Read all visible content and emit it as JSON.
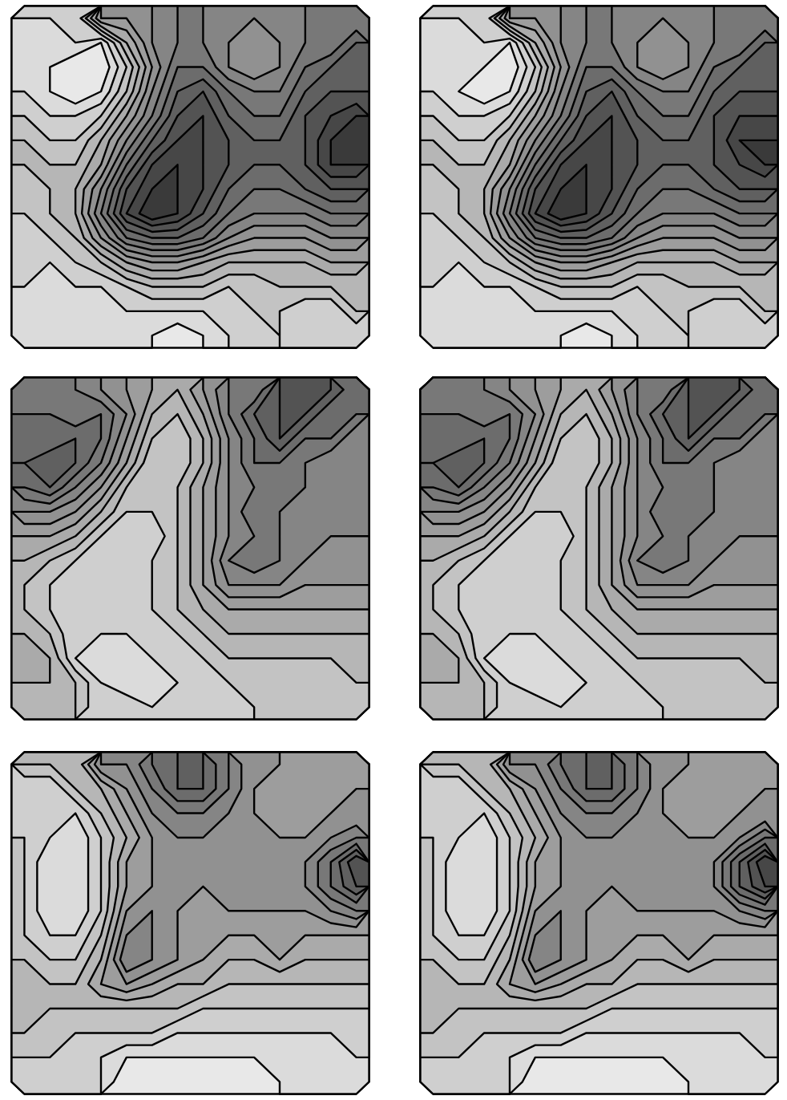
{
  "chart_data": [
    {
      "type": "contour",
      "tick_labels": false,
      "zlim": [
        0,
        16
      ],
      "thresholds": [
        1,
        2,
        3,
        4,
        5,
        6,
        7,
        8,
        9,
        10,
        11,
        12,
        13,
        14,
        15,
        16
      ],
      "values": [
        [
          null,
          null,
          null,
          null,
          8,
          9,
          10,
          10,
          9,
          9,
          null,
          null,
          null,
          null
        ],
        [
          null,
          null,
          3,
          2,
          6,
          9,
          10,
          10,
          9,
          8,
          9,
          10,
          null,
          null
        ],
        [
          null,
          2,
          1,
          1,
          4,
          8,
          11,
          11,
          9,
          8,
          9,
          11,
          12,
          null
        ],
        [
          3,
          2,
          1,
          2,
          5,
          9,
          12,
          13,
          11,
          10,
          10,
          12,
          13,
          13
        ],
        [
          4,
          3,
          3,
          4,
          7,
          10,
          13,
          14,
          12,
          11,
          11,
          13,
          14,
          15
        ],
        [
          5,
          4,
          4,
          6,
          9,
          12,
          14,
          14,
          13,
          12,
          12,
          13,
          15,
          16
        ],
        [
          5,
          5,
          5,
          7,
          11,
          14,
          15,
          14,
          13,
          12,
          12,
          13,
          15,
          15
        ],
        [
          4,
          5,
          6,
          9,
          13,
          15,
          15,
          14,
          12,
          11,
          11,
          12,
          13,
          13
        ],
        [
          4,
          5,
          6,
          10,
          14,
          16,
          15,
          13,
          11,
          10,
          10,
          10,
          11,
          11
        ],
        [
          3,
          4,
          5,
          8,
          11,
          12,
          12,
          11,
          9,
          8,
          8,
          8,
          9,
          9
        ],
        [
          3,
          3,
          4,
          5,
          7,
          8,
          8,
          7,
          6,
          6,
          6,
          6,
          7,
          7
        ],
        [
          null,
          2,
          3,
          3,
          4,
          5,
          5,
          5,
          4,
          4,
          5,
          5,
          5,
          null
        ],
        [
          null,
          null,
          2,
          2,
          3,
          3,
          3,
          3,
          3,
          4,
          4,
          3,
          null,
          null
        ],
        [
          null,
          null,
          null,
          null,
          2,
          2,
          1,
          2,
          3,
          3,
          null,
          null,
          null,
          null
        ]
      ]
    },
    {
      "type": "contour",
      "tick_labels": false,
      "zlim": [
        0,
        16
      ],
      "thresholds": [
        1,
        2,
        3,
        4,
        5,
        6,
        7,
        8,
        9,
        10,
        11,
        12,
        13,
        14,
        15,
        16
      ],
      "values": [
        [
          null,
          null,
          null,
          null,
          8,
          9,
          10,
          10,
          9,
          9,
          null,
          null,
          null,
          null
        ],
        [
          null,
          null,
          3,
          2,
          6,
          9,
          10,
          10,
          9,
          8,
          9,
          10,
          null,
          null
        ],
        [
          null,
          2,
          2,
          1,
          4,
          8,
          11,
          11,
          9,
          8,
          9,
          11,
          12,
          null
        ],
        [
          3,
          2,
          1,
          2,
          5,
          9,
          12,
          13,
          11,
          10,
          10,
          12,
          13,
          13
        ],
        [
          4,
          3,
          3,
          4,
          7,
          10,
          13,
          14,
          12,
          11,
          11,
          13,
          14,
          14
        ],
        [
          5,
          4,
          4,
          6,
          9,
          12,
          14,
          14,
          13,
          12,
          12,
          13,
          15,
          15
        ],
        [
          5,
          5,
          5,
          7,
          11,
          14,
          15,
          14,
          13,
          12,
          12,
          13,
          14,
          15
        ],
        [
          4,
          5,
          6,
          9,
          13,
          15,
          15,
          14,
          12,
          11,
          11,
          12,
          13,
          13
        ],
        [
          4,
          5,
          6,
          10,
          14,
          16,
          15,
          13,
          11,
          10,
          10,
          10,
          11,
          11
        ],
        [
          3,
          4,
          5,
          8,
          11,
          12,
          12,
          11,
          9,
          8,
          8,
          8,
          9,
          9
        ],
        [
          3,
          3,
          4,
          5,
          7,
          8,
          8,
          7,
          6,
          6,
          6,
          6,
          7,
          7
        ],
        [
          null,
          2,
          3,
          3,
          4,
          5,
          5,
          5,
          4,
          4,
          5,
          5,
          5,
          null
        ],
        [
          null,
          null,
          2,
          2,
          3,
          3,
          3,
          3,
          3,
          4,
          4,
          3,
          null,
          null
        ],
        [
          null,
          null,
          null,
          null,
          2,
          2,
          1,
          2,
          3,
          3,
          null,
          null,
          null,
          null
        ]
      ]
    },
    {
      "type": "contour",
      "tick_labels": false,
      "zlim": [
        0,
        16
      ],
      "thresholds": [
        1,
        2,
        3,
        4,
        5,
        6,
        7,
        8,
        9,
        10,
        11,
        12,
        13,
        14,
        15,
        16
      ],
      "values": [
        [
          null,
          null,
          null,
          9,
          8,
          7,
          6,
          8,
          10,
          null,
          null,
          null,
          null,
          null
        ],
        [
          null,
          null,
          10,
          11,
          9,
          6,
          5,
          7,
          10,
          12,
          13,
          null,
          null,
          null
        ],
        [
          null,
          11,
          12,
          11,
          8,
          5,
          4,
          6,
          9,
          11,
          13,
          11,
          null,
          null
        ],
        [
          12,
          13,
          12,
          10,
          7,
          4,
          4,
          6,
          9,
          11,
          11,
          10,
          9,
          null
        ],
        [
          11,
          12,
          10,
          8,
          5,
          4,
          5,
          7,
          9,
          10,
          10,
          10,
          9,
          9
        ],
        [
          9,
          9,
          8,
          6,
          4,
          4,
          5,
          7,
          9,
          11,
          10,
          9,
          9,
          9
        ],
        [
          7,
          7,
          6,
          4,
          3,
          3,
          5,
          7,
          9,
          10,
          10,
          9,
          9,
          9
        ],
        [
          6,
          5,
          4,
          3,
          3,
          4,
          5,
          7,
          10,
          11,
          10,
          9,
          8,
          8
        ],
        [
          5,
          4,
          3,
          3,
          3,
          4,
          5,
          7,
          9,
          9,
          9,
          8,
          8,
          8
        ],
        [
          5,
          4,
          3,
          3,
          3,
          4,
          5,
          6,
          7,
          7,
          7,
          7,
          7,
          7
        ],
        [
          6,
          5,
          3,
          3,
          3,
          3,
          4,
          5,
          6,
          6,
          6,
          6,
          6,
          6
        ],
        [
          null,
          6,
          3,
          2,
          2,
          3,
          3,
          4,
          5,
          5,
          5,
          5,
          5,
          null
        ],
        [
          null,
          null,
          5,
          3,
          2,
          2,
          3,
          3,
          4,
          4,
          4,
          4,
          null,
          null
        ],
        [
          null,
          null,
          null,
          null,
          4,
          3,
          3,
          3,
          3,
          null,
          null,
          null,
          null,
          null
        ]
      ]
    },
    {
      "type": "contour",
      "tick_labels": false,
      "zlim": [
        0,
        16
      ],
      "thresholds": [
        1,
        2,
        3,
        4,
        5,
        6,
        7,
        8,
        9,
        10,
        11,
        12,
        13,
        14,
        15,
        16
      ],
      "values": [
        [
          null,
          null,
          null,
          9,
          8,
          7,
          6,
          8,
          10,
          null,
          null,
          null,
          null,
          null
        ],
        [
          null,
          null,
          10,
          11,
          9,
          6,
          5,
          7,
          10,
          12,
          13,
          null,
          null,
          null
        ],
        [
          null,
          11,
          12,
          11,
          8,
          5,
          4,
          6,
          9,
          11,
          13,
          11,
          null,
          null
        ],
        [
          12,
          13,
          12,
          10,
          7,
          4,
          4,
          6,
          9,
          11,
          11,
          10,
          9,
          null
        ],
        [
          11,
          12,
          10,
          8,
          5,
          4,
          5,
          7,
          9,
          10,
          10,
          10,
          9,
          9
        ],
        [
          9,
          9,
          8,
          6,
          4,
          4,
          5,
          7,
          9,
          11,
          10,
          10,
          9,
          9
        ],
        [
          7,
          7,
          6,
          4,
          3,
          3,
          5,
          7,
          9,
          10,
          10,
          9,
          9,
          9
        ],
        [
          6,
          5,
          4,
          3,
          3,
          4,
          5,
          7,
          10,
          11,
          10,
          9,
          8,
          8
        ],
        [
          5,
          4,
          3,
          3,
          3,
          4,
          5,
          7,
          9,
          9,
          9,
          8,
          8,
          8
        ],
        [
          5,
          4,
          3,
          3,
          3,
          4,
          5,
          6,
          7,
          7,
          7,
          7,
          7,
          7
        ],
        [
          6,
          5,
          3,
          3,
          3,
          3,
          4,
          5,
          6,
          6,
          6,
          6,
          6,
          6
        ],
        [
          null,
          6,
          3,
          2,
          2,
          3,
          3,
          4,
          5,
          5,
          5,
          5,
          5,
          null
        ],
        [
          null,
          null,
          5,
          3,
          2,
          2,
          3,
          3,
          4,
          4,
          4,
          4,
          null,
          null
        ],
        [
          null,
          null,
          null,
          null,
          4,
          3,
          3,
          3,
          3,
          null,
          null,
          null,
          null,
          null
        ]
      ]
    },
    {
      "type": "contour",
      "tick_labels": false,
      "zlim": [
        0,
        16
      ],
      "thresholds": [
        1,
        2,
        3,
        4,
        5,
        6,
        7,
        8,
        9,
        10,
        11,
        12,
        13,
        14,
        15,
        16
      ],
      "values": [
        [
          null,
          null,
          null,
          null,
          9,
          11,
          12,
          12,
          10,
          8,
          null,
          null,
          null,
          null
        ],
        [
          null,
          null,
          5,
          6,
          8,
          10,
          12,
          12,
          10,
          8,
          7,
          7,
          null,
          null
        ],
        [
          null,
          3,
          3,
          5,
          7,
          9,
          10,
          10,
          9,
          8,
          7,
          7,
          8,
          null
        ],
        [
          4,
          3,
          2,
          4,
          6,
          8,
          9,
          9,
          8,
          8,
          8,
          8,
          9,
          10
        ],
        [
          4,
          2,
          2,
          4,
          7,
          8,
          8,
          8,
          8,
          8,
          8,
          9,
          11,
          14
        ],
        [
          4,
          2,
          2,
          4,
          7,
          8,
          8,
          8,
          8,
          8,
          8,
          9,
          11,
          13
        ],
        [
          4,
          2,
          2,
          4,
          8,
          9,
          8,
          7,
          8,
          8,
          8,
          8,
          9,
          10
        ],
        [
          4,
          3,
          3,
          5,
          9,
          9,
          8,
          7,
          7,
          7,
          7,
          7,
          7,
          7
        ],
        [
          5,
          4,
          4,
          6,
          10,
          9,
          8,
          7,
          6,
          6,
          7,
          6,
          6,
          6
        ],
        [
          5,
          5,
          5,
          7,
          8,
          7,
          6,
          6,
          5,
          5,
          5,
          5,
          5,
          5
        ],
        [
          5,
          5,
          5,
          5,
          5,
          5,
          5,
          4,
          4,
          4,
          4,
          4,
          4,
          4
        ],
        [
          null,
          4,
          4,
          4,
          4,
          4,
          3,
          3,
          3,
          3,
          3,
          3,
          3,
          null
        ],
        [
          null,
          null,
          3,
          3,
          2,
          2,
          2,
          2,
          2,
          2,
          2,
          2,
          null,
          null
        ],
        [
          null,
          null,
          null,
          null,
          1,
          1,
          1,
          1,
          1,
          1,
          null,
          null,
          null,
          null
        ]
      ]
    },
    {
      "type": "contour",
      "tick_labels": false,
      "zlim": [
        0,
        16
      ],
      "thresholds": [
        1,
        2,
        3,
        4,
        5,
        6,
        7,
        8,
        9,
        10,
        11,
        12,
        13,
        14,
        15,
        16
      ],
      "values": [
        [
          null,
          null,
          null,
          null,
          9,
          11,
          12,
          12,
          10,
          8,
          null,
          null,
          null,
          null
        ],
        [
          null,
          null,
          5,
          6,
          8,
          10,
          12,
          12,
          10,
          8,
          7,
          7,
          null,
          null
        ],
        [
          null,
          3,
          3,
          5,
          7,
          9,
          10,
          10,
          9,
          8,
          7,
          7,
          8,
          null
        ],
        [
          4,
          3,
          2,
          4,
          6,
          8,
          9,
          9,
          8,
          8,
          8,
          8,
          9,
          11
        ],
        [
          4,
          2,
          2,
          4,
          7,
          8,
          8,
          8,
          8,
          8,
          8,
          9,
          12,
          15
        ],
        [
          4,
          2,
          2,
          4,
          7,
          8,
          8,
          8,
          8,
          8,
          8,
          9,
          12,
          14
        ],
        [
          4,
          2,
          2,
          4,
          8,
          9,
          8,
          7,
          8,
          8,
          8,
          8,
          9,
          10
        ],
        [
          4,
          3,
          3,
          5,
          9,
          9,
          8,
          7,
          7,
          7,
          7,
          7,
          7,
          7
        ],
        [
          5,
          4,
          4,
          6,
          10,
          9,
          8,
          7,
          6,
          6,
          7,
          6,
          6,
          6
        ],
        [
          5,
          5,
          5,
          7,
          8,
          7,
          6,
          6,
          5,
          5,
          5,
          5,
          5,
          5
        ],
        [
          5,
          5,
          5,
          5,
          5,
          5,
          5,
          4,
          4,
          4,
          4,
          4,
          4,
          4
        ],
        [
          null,
          4,
          4,
          4,
          4,
          4,
          3,
          3,
          3,
          3,
          3,
          3,
          3,
          null
        ],
        [
          null,
          null,
          3,
          3,
          2,
          2,
          2,
          2,
          2,
          2,
          2,
          2,
          null,
          null
        ],
        [
          null,
          null,
          null,
          null,
          1,
          1,
          1,
          1,
          1,
          1,
          null,
          null,
          null,
          null
        ]
      ]
    }
  ]
}
